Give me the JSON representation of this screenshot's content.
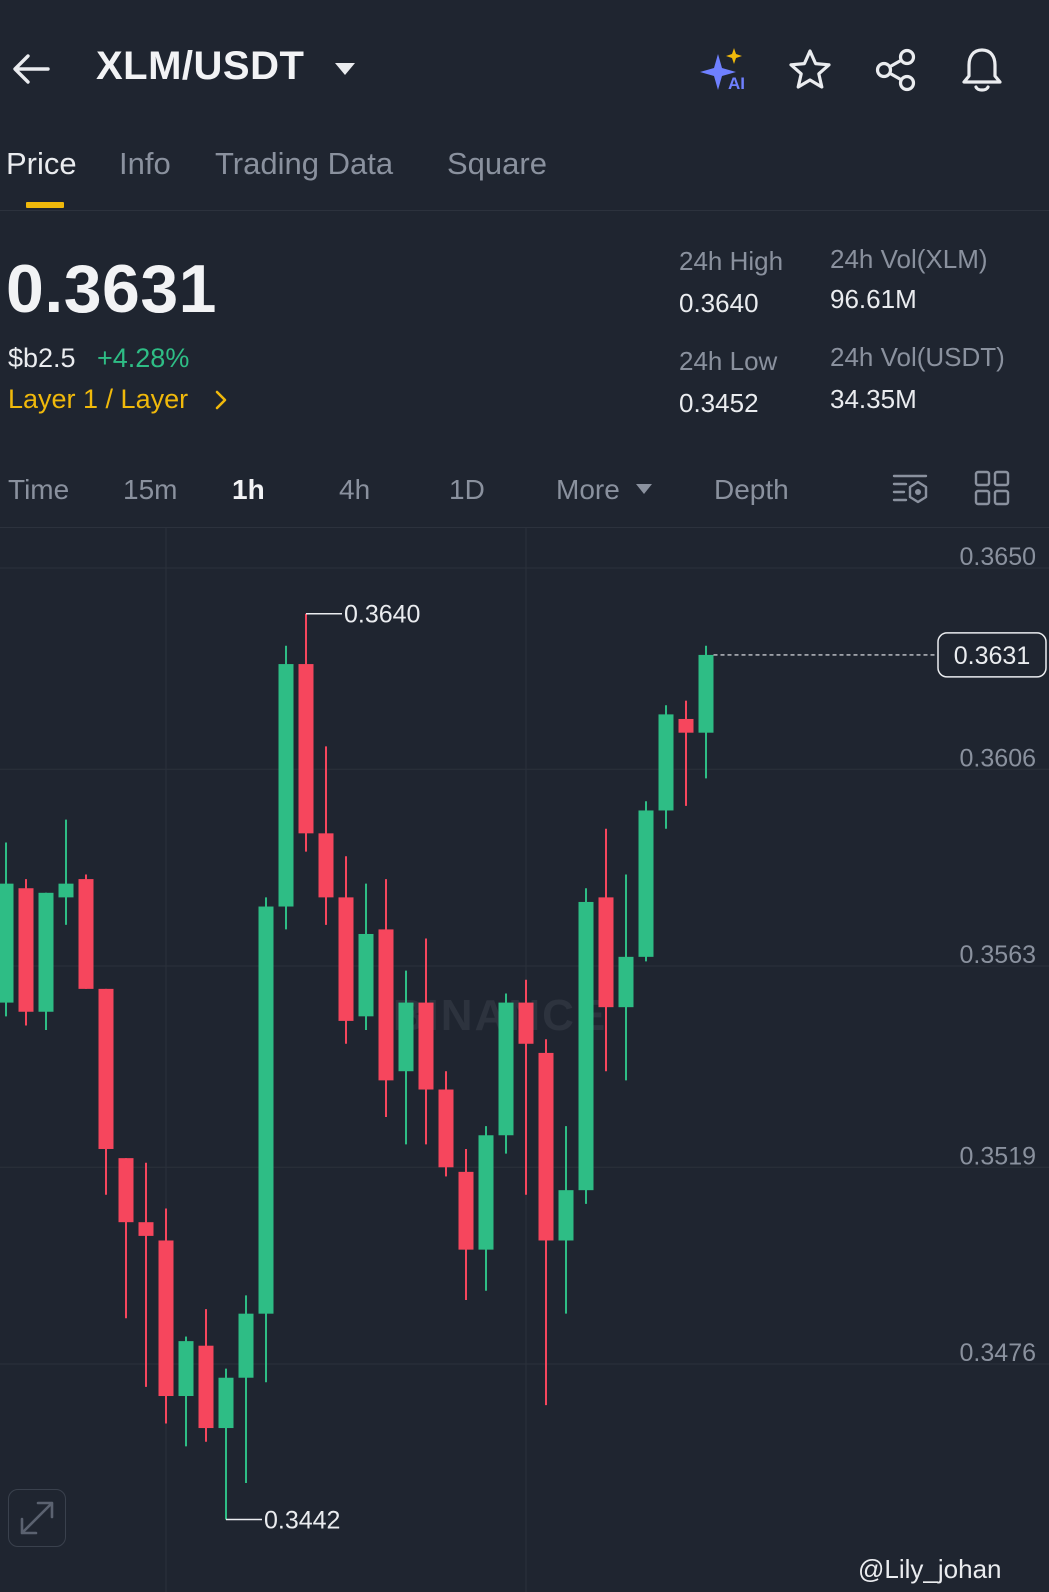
{
  "header": {
    "pair": "XLM/USDT",
    "icons": [
      "back-arrow-icon",
      "ai-sparkle-icon",
      "star-icon",
      "share-icon",
      "bell-icon"
    ],
    "ai_badge": "AI"
  },
  "tabs": [
    {
      "label": "Price",
      "active": true
    },
    {
      "label": "Info",
      "active": false
    },
    {
      "label": "Trading Data",
      "active": false
    },
    {
      "label": "Square",
      "active": false
    }
  ],
  "price": {
    "last": "0.3631",
    "fiat": "$b2.5",
    "change": "+4.28%",
    "tag": "Layer 1 / Layer"
  },
  "stats": {
    "high_label": "24h High",
    "high_value": "0.3640",
    "low_label": "24h Low",
    "low_value": "0.3452",
    "vol_base_label": "24h Vol(XLM)",
    "vol_base_value": "96.61M",
    "vol_quote_label": "24h Vol(USDT)",
    "vol_quote_value": "34.35M"
  },
  "intervals": {
    "items": [
      "Time",
      "15m",
      "1h",
      "4h",
      "1D"
    ],
    "active": "1h",
    "more": "More",
    "depth": "Depth"
  },
  "colors": {
    "up": "#2ebd85",
    "down": "#f6465d",
    "accent": "#f0b90b",
    "background": "#1f2530"
  },
  "chart_data": {
    "type": "candlestick",
    "interval": "1h",
    "y_ticks": [
      "0.3650",
      "0.3606",
      "0.3563",
      "0.3519",
      "0.3476"
    ],
    "ylim": [
      0.343,
      0.3668
    ],
    "last_price_label": "0.3631",
    "high_label": "0.3640",
    "low_label": "0.3442",
    "watermark": "BINANCE",
    "candles": [
      {
        "o": 0.3555,
        "h": 0.359,
        "l": 0.3552,
        "c": 0.3581
      },
      {
        "o": 0.358,
        "h": 0.3582,
        "l": 0.355,
        "c": 0.3553
      },
      {
        "o": 0.3553,
        "h": 0.3579,
        "l": 0.3549,
        "c": 0.3579
      },
      {
        "o": 0.3578,
        "h": 0.3595,
        "l": 0.3572,
        "c": 0.3581
      },
      {
        "o": 0.3582,
        "h": 0.3583,
        "l": 0.3558,
        "c": 0.3558
      },
      {
        "o": 0.3558,
        "h": 0.3558,
        "l": 0.3513,
        "c": 0.3523
      },
      {
        "o": 0.3521,
        "h": 0.3521,
        "l": 0.3486,
        "c": 0.3507
      },
      {
        "o": 0.3507,
        "h": 0.352,
        "l": 0.3471,
        "c": 0.3504
      },
      {
        "o": 0.3503,
        "h": 0.351,
        "l": 0.3463,
        "c": 0.3469
      },
      {
        "o": 0.3469,
        "h": 0.3482,
        "l": 0.3458,
        "c": 0.3481
      },
      {
        "o": 0.348,
        "h": 0.3488,
        "l": 0.3459,
        "c": 0.3462
      },
      {
        "o": 0.3462,
        "h": 0.3475,
        "l": 0.3442,
        "c": 0.3473
      },
      {
        "o": 0.3473,
        "h": 0.3491,
        "l": 0.345,
        "c": 0.3487
      },
      {
        "o": 0.3487,
        "h": 0.3578,
        "l": 0.3472,
        "c": 0.3576
      },
      {
        "o": 0.3576,
        "h": 0.3633,
        "l": 0.3571,
        "c": 0.3629
      },
      {
        "o": 0.3629,
        "h": 0.364,
        "l": 0.3588,
        "c": 0.3592
      },
      {
        "o": 0.3592,
        "h": 0.3611,
        "l": 0.3572,
        "c": 0.3578
      },
      {
        "o": 0.3578,
        "h": 0.3587,
        "l": 0.3546,
        "c": 0.3551
      },
      {
        "o": 0.3552,
        "h": 0.3581,
        "l": 0.3549,
        "c": 0.357
      },
      {
        "o": 0.3571,
        "h": 0.3582,
        "l": 0.353,
        "c": 0.3538
      },
      {
        "o": 0.354,
        "h": 0.3562,
        "l": 0.3524,
        "c": 0.3555
      },
      {
        "o": 0.3555,
        "h": 0.3569,
        "l": 0.3524,
        "c": 0.3536
      },
      {
        "o": 0.3536,
        "h": 0.354,
        "l": 0.3517,
        "c": 0.3519
      },
      {
        "o": 0.3518,
        "h": 0.3523,
        "l": 0.349,
        "c": 0.3501
      },
      {
        "o": 0.3501,
        "h": 0.3528,
        "l": 0.3492,
        "c": 0.3526
      },
      {
        "o": 0.3526,
        "h": 0.3557,
        "l": 0.3522,
        "c": 0.3555
      },
      {
        "o": 0.3555,
        "h": 0.356,
        "l": 0.3513,
        "c": 0.3546
      },
      {
        "o": 0.3544,
        "h": 0.3547,
        "l": 0.3467,
        "c": 0.3503
      },
      {
        "o": 0.3503,
        "h": 0.3528,
        "l": 0.3487,
        "c": 0.3514
      },
      {
        "o": 0.3514,
        "h": 0.358,
        "l": 0.3511,
        "c": 0.3577
      },
      {
        "o": 0.3578,
        "h": 0.3593,
        "l": 0.354,
        "c": 0.3554
      },
      {
        "o": 0.3554,
        "h": 0.3583,
        "l": 0.3538,
        "c": 0.3565
      },
      {
        "o": 0.3565,
        "h": 0.3599,
        "l": 0.3564,
        "c": 0.3597
      },
      {
        "o": 0.3597,
        "h": 0.362,
        "l": 0.3593,
        "c": 0.3618
      },
      {
        "o": 0.3617,
        "h": 0.3621,
        "l": 0.3598,
        "c": 0.3614
      },
      {
        "o": 0.3614,
        "h": 0.3633,
        "l": 0.3604,
        "c": 0.3631
      }
    ]
  },
  "credit": "@Lily_johan"
}
